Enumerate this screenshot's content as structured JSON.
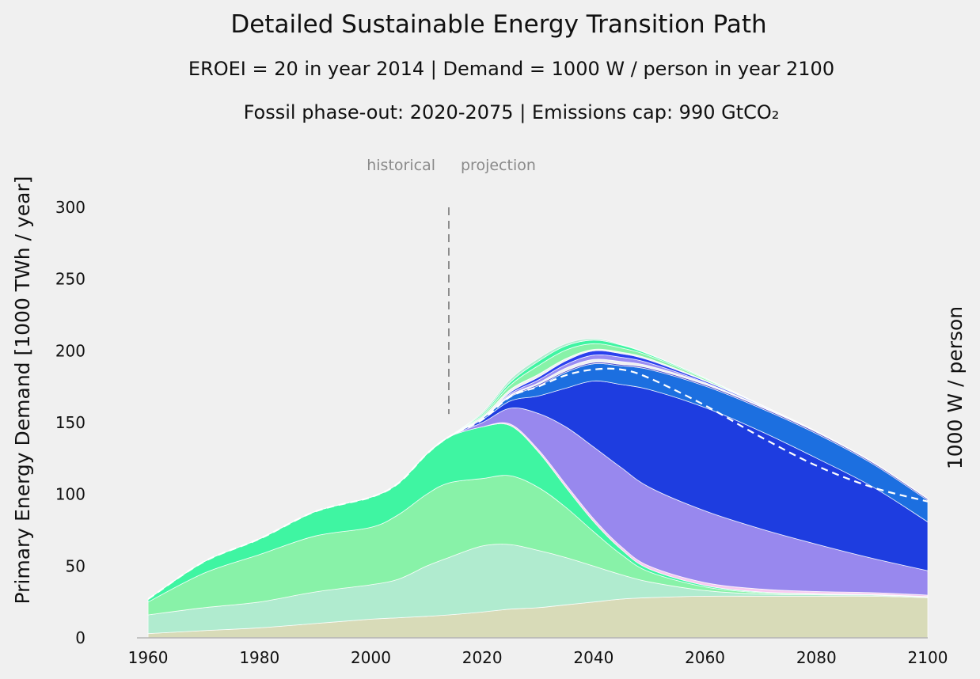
{
  "chart_data": {
    "type": "area",
    "title": "Detailed Sustainable Energy Transition Path",
    "subtitle_line1": "EROEI = 20 in year 2014   |   Demand = 1000 W / person in year 2100",
    "subtitle_line2": "Fossil phase-out: 2020-2075   |   Emissions cap: 990 GtCO₂",
    "ylabel": "Primary Energy Demand [1000 TWh / year]",
    "ylabel_right": "1000 W / person",
    "xlim": [
      1958,
      2100
    ],
    "ylim": [
      0,
      300
    ],
    "xticks": [
      "1960",
      "1980",
      "2000",
      "2020",
      "2040",
      "2060",
      "2080",
      "2100"
    ],
    "yticks": [
      "0",
      "50",
      "100",
      "150",
      "200",
      "250",
      "300"
    ],
    "annotations": {
      "left": "historical",
      "right": "projection",
      "divider_year": 2014
    },
    "grid": false,
    "x": [
      1960,
      1970,
      1980,
      1990,
      2000,
      2005,
      2010,
      2014,
      2020,
      2025,
      2030,
      2035,
      2040,
      2045,
      2050,
      2060,
      2070,
      2080,
      2090,
      2100
    ],
    "series": [
      {
        "color": "#d8dbb8",
        "values": [
          3,
          5,
          7,
          10,
          13,
          14,
          15,
          16,
          18,
          20,
          21,
          23,
          25,
          27,
          28,
          29,
          29,
          29,
          29,
          28
        ]
      },
      {
        "color": "#b0ebcf",
        "values": [
          13,
          16,
          18,
          22,
          24,
          27,
          35,
          40,
          46,
          45,
          40,
          33,
          25,
          17,
          11,
          4,
          1.5,
          1,
          0.7,
          0.5
        ]
      },
      {
        "color": "#88f2a8",
        "values": [
          9,
          24,
          33,
          39,
          40,
          45,
          50,
          52,
          47,
          48,
          44,
          35,
          24,
          14,
          7,
          2.5,
          1,
          0.5,
          0.3,
          0.2
        ]
      },
      {
        "color": "#3ff5a2",
        "values": [
          2,
          8,
          11,
          17,
          21,
          22,
          28,
          32,
          36,
          35,
          25,
          14,
          7,
          3.5,
          2,
          1,
          0.5,
          0.3,
          0.2,
          0.1
        ]
      },
      {
        "color": "#f7caf0",
        "values": [
          0,
          0,
          0,
          0,
          0,
          0,
          0,
          0,
          0,
          1,
          1.5,
          2,
          2,
          2,
          2,
          2,
          2,
          1.5,
          1.3,
          1
        ]
      },
      {
        "color": "#9888ee",
        "values": [
          0,
          0,
          0,
          0,
          0,
          0,
          0,
          0,
          3,
          11,
          25,
          40,
          50,
          55,
          55,
          50,
          42,
          33,
          24,
          17
        ]
      },
      {
        "color": "#1e3de0",
        "values": [
          0,
          0,
          0,
          0,
          0,
          0,
          0,
          0,
          2,
          5,
          12,
          27,
          46,
          58,
          68,
          72,
          68,
          60,
          50,
          34
        ]
      },
      {
        "color": "#1c6fe0",
        "values": [
          0,
          0,
          0,
          0,
          0,
          0,
          0,
          0,
          1,
          3,
          7,
          11,
          12,
          13,
          14,
          15,
          16,
          17,
          16,
          15
        ]
      },
      {
        "color": "#4a46c8",
        "values": [
          0,
          0,
          0,
          0,
          0,
          0,
          0,
          0,
          0,
          0.5,
          1,
          1,
          1,
          1,
          1,
          1,
          1,
          1,
          1,
          1
        ]
      },
      {
        "color": "#f0f0f0",
        "values": [
          0,
          0,
          0,
          0,
          0,
          0,
          0,
          0,
          0,
          0.5,
          1,
          2,
          2,
          2,
          1.5,
          1,
          0.5,
          0.3,
          0.2,
          0.1
        ]
      },
      {
        "color": "#9b8df2",
        "values": [
          0,
          0,
          0,
          0,
          0,
          0,
          0,
          0,
          0,
          1,
          2,
          2.5,
          3,
          3,
          2,
          0.5,
          0.2,
          0,
          0,
          0
        ]
      },
      {
        "color": "#2a40ee",
        "values": [
          0,
          0,
          0,
          0,
          0,
          0,
          0,
          0,
          0,
          1,
          2,
          2.5,
          3,
          2.5,
          2,
          1,
          0.5,
          0.2,
          0.1,
          0.1
        ]
      },
      {
        "color": "#f0f0f0",
        "values": [
          0,
          0,
          0,
          0,
          0,
          0,
          0,
          0,
          1,
          2,
          2,
          1.5,
          1,
          1,
          1,
          0.5,
          0.3,
          0,
          0,
          0
        ]
      },
      {
        "color": "#88f2a8",
        "values": [
          0,
          0,
          0,
          0,
          0,
          0,
          0,
          0,
          1,
          3,
          6,
          6,
          4,
          3,
          2,
          1,
          0,
          0,
          0,
          0
        ]
      },
      {
        "color": "#3ff5a2",
        "values": [
          0,
          0,
          0,
          0,
          0,
          0,
          0,
          0,
          1,
          2,
          3,
          3,
          2.5,
          2,
          1,
          0.5,
          0,
          0,
          0,
          0
        ]
      },
      {
        "color": "#b0ebcf",
        "values": [
          0,
          0,
          0,
          0,
          0,
          0,
          0,
          0,
          1,
          2,
          2,
          1.5,
          1,
          0.5,
          0.3,
          0.1,
          0,
          0,
          0,
          0
        ]
      }
    ],
    "dashed_total": {
      "color": "#ffffff",
      "note": "dashed white line tracks the total of the primary sources",
      "values": [
        27,
        53,
        69,
        88,
        98,
        108,
        128,
        140,
        152,
        168,
        175,
        183,
        187,
        187,
        181,
        162,
        140,
        120,
        105,
        95
      ]
    }
  }
}
